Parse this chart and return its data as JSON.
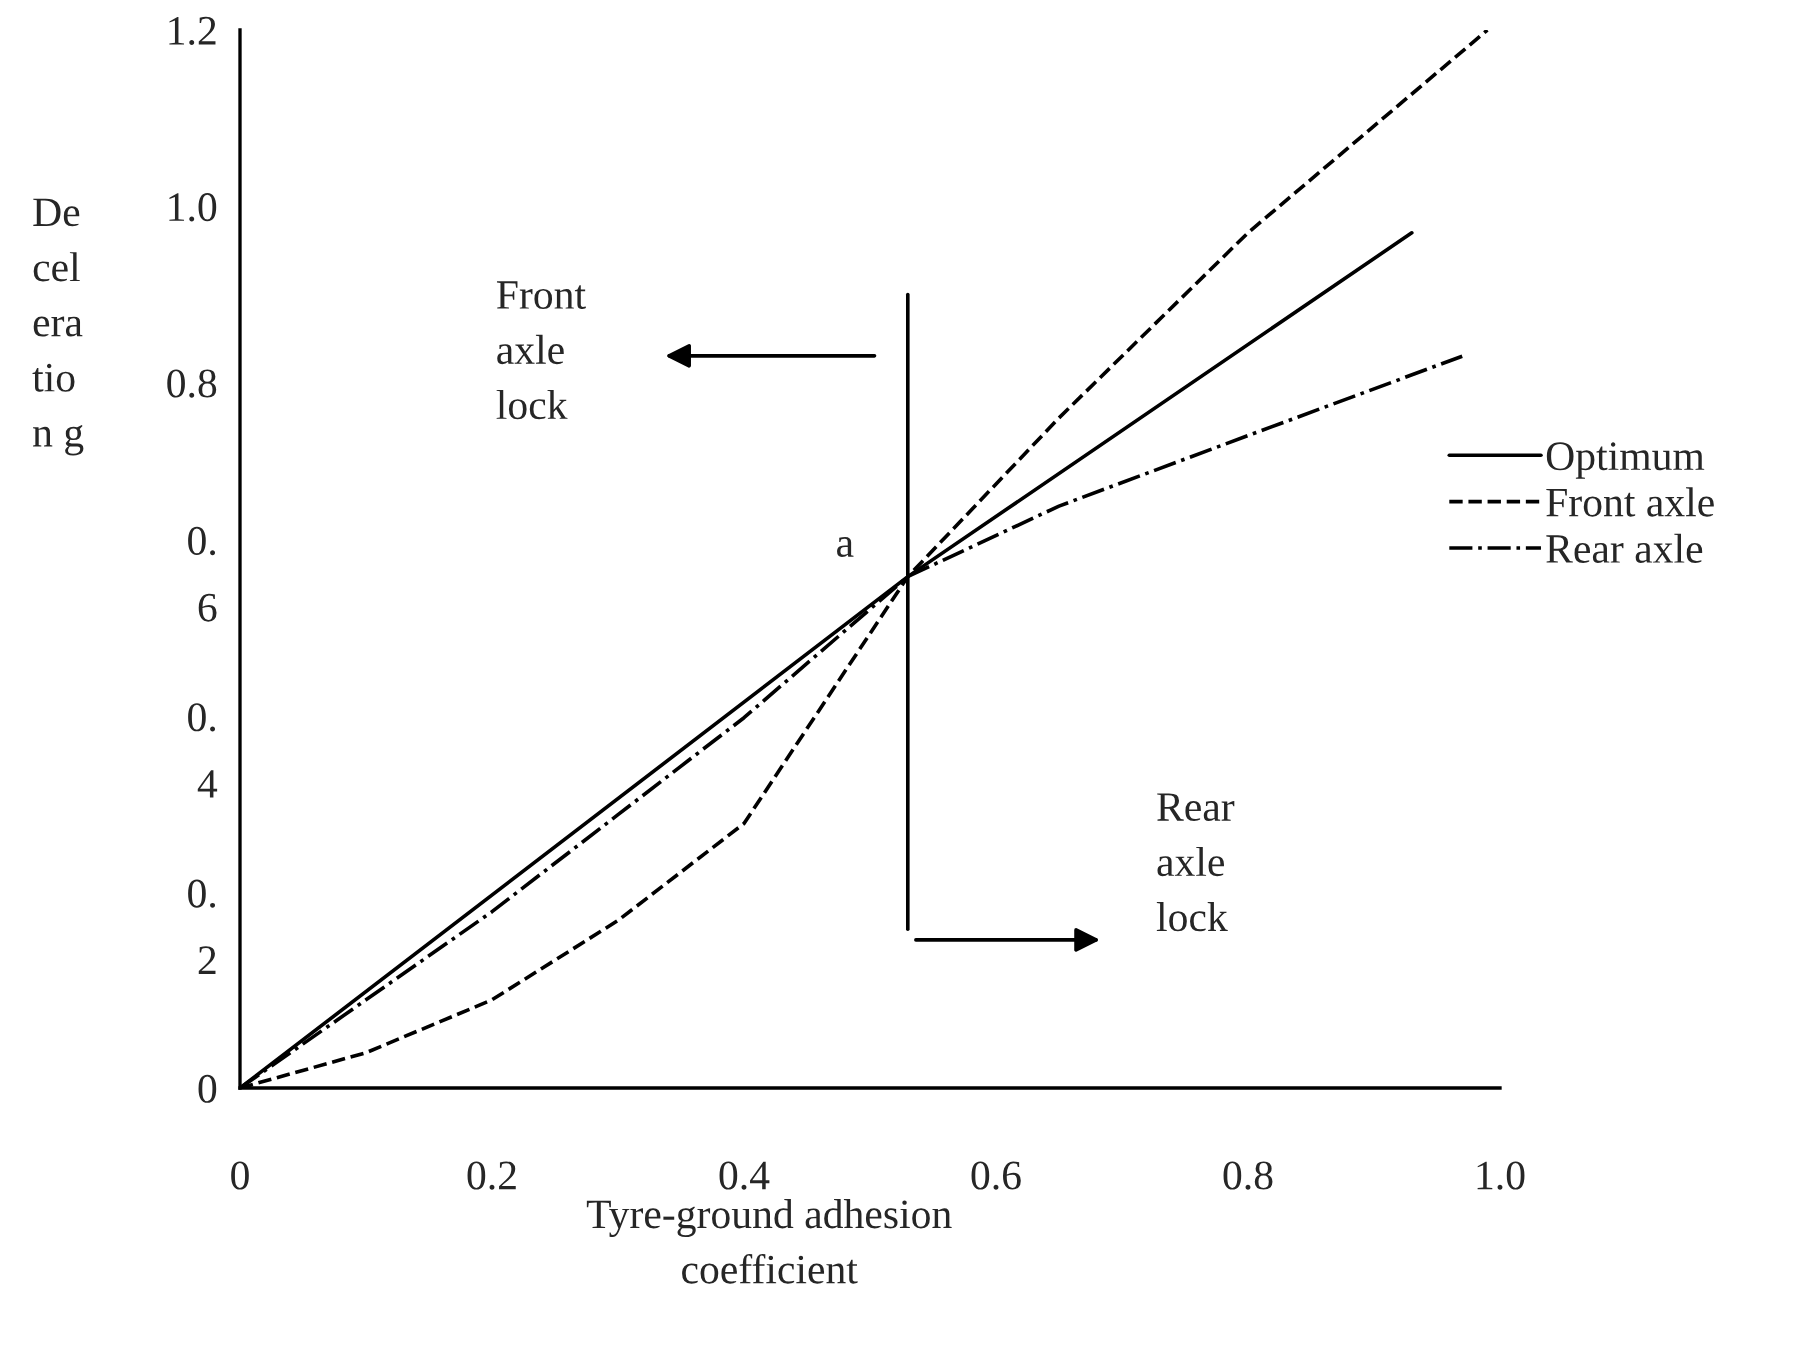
{
  "chart_data": {
    "type": "line",
    "xlabel": "Tyre-ground adhesion\ncoefficient",
    "ylabel": "De\ncel\nera\ntio\nn g",
    "xlim": [
      0,
      1.0
    ],
    "ylim": [
      0,
      1.2
    ],
    "xticks": [
      0,
      0.2,
      0.4,
      0.6,
      0.8,
      {
        "value": 1.0,
        "label": "1.0"
      }
    ],
    "yticks": [
      0,
      {
        "value": 0.2,
        "label": "0.\n2"
      },
      {
        "value": 0.4,
        "label": "0.\n4"
      },
      {
        "value": 0.6,
        "label": "0.\n6"
      },
      {
        "value": 0.8,
        "label": "0.8"
      },
      {
        "value": 1.0,
        "label": "1.0"
      },
      {
        "value": 1.2,
        "label": "1.2"
      }
    ],
    "series": [
      {
        "name": "Optimum",
        "color": "#000000",
        "line_style": "solid",
        "x": [
          0,
          0.53,
          0.93
        ],
        "values": [
          0,
          0.58,
          0.97
        ]
      },
      {
        "name": "Front axle",
        "color": "#000000",
        "line_style": "dashed",
        "x": [
          0,
          0.1,
          0.2,
          0.3,
          0.4,
          0.53,
          0.65,
          0.8,
          0.99
        ],
        "values": [
          0,
          0.04,
          0.1,
          0.19,
          0.3,
          0.58,
          0.76,
          0.97,
          1.2
        ]
      },
      {
        "name": "Rear axle",
        "color": "#000000",
        "line_style": "dashdot",
        "x": [
          0,
          0.1,
          0.2,
          0.3,
          0.4,
          0.53,
          0.65,
          0.8,
          0.97
        ],
        "values": [
          0,
          0.1,
          0.2,
          0.31,
          0.42,
          0.58,
          0.66,
          0.74,
          0.83
        ]
      },
      {
        "color": "#000000",
        "line_style": "solid",
        "x": [
          0.53,
          0.53
        ],
        "values": [
          0.18,
          0.9
        ]
      }
    ],
    "annotations": [
      {
        "text": "a",
        "x": 0.53,
        "y": 0.58
      },
      "Front\naxle\nlock",
      "Rear\naxle\nlock"
    ],
    "legend": "right",
    "grid": false
  }
}
